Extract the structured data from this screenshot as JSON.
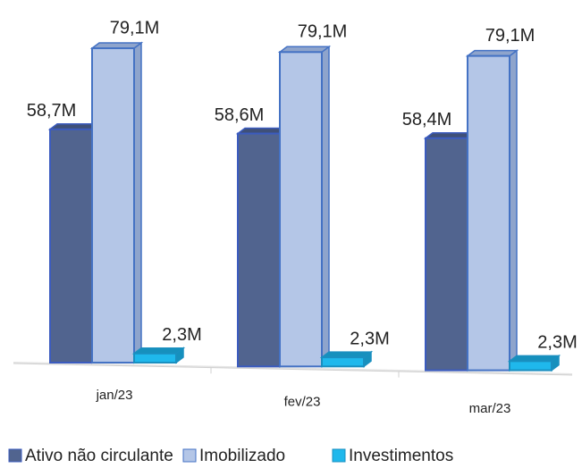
{
  "chart_data": {
    "type": "bar3d",
    "categories": [
      "jan/23",
      "fev/23",
      "mar/23"
    ],
    "series": [
      {
        "name": "Ativo não circulante",
        "color": "#51648f",
        "values": [
          58.7,
          58.6,
          58.4
        ],
        "value_labels": [
          "58,7M",
          "58,6M",
          "58,4M"
        ]
      },
      {
        "name": "Imobilizado",
        "color": "#b4c6e7",
        "values": [
          79.1,
          79.1,
          79.1
        ],
        "value_labels": [
          "79,1M",
          "79,1M",
          "79,1M"
        ]
      },
      {
        "name": "Investimentos",
        "color": "#1fb8ec",
        "values": [
          2.3,
          2.3,
          2.3
        ],
        "value_labels": [
          "2,3M",
          "2,3M",
          "2,3M"
        ]
      }
    ]
  }
}
